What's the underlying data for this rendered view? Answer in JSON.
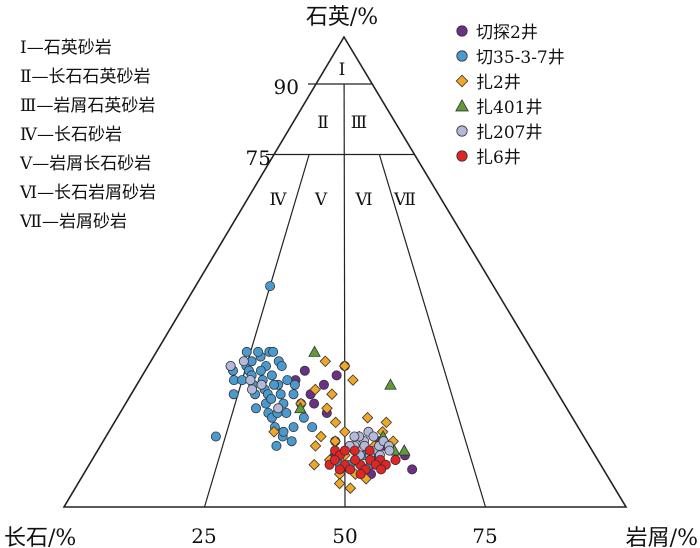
{
  "chart_data": {
    "type": "ternary-scatter",
    "apex_labels": {
      "top": "石英/%",
      "left": "长石/%",
      "right": "岩屑/%"
    },
    "quartz_ticks": [
      "90",
      "75"
    ],
    "base_ticks": [
      "25",
      "50",
      "75"
    ],
    "field_labels": [
      "Ⅰ",
      "Ⅱ",
      "Ⅲ",
      "Ⅳ",
      "Ⅴ",
      "Ⅵ",
      "Ⅶ"
    ],
    "classification": [
      "Ⅰ—石英砂岩",
      "Ⅱ—长石石英砂岩",
      "Ⅲ—岩屑石英砂岩",
      "Ⅳ—长石砂岩",
      "Ⅴ—岩屑长石砂岩",
      "Ⅵ—长石岩屑砂岩",
      "Ⅶ—岩屑砂岩"
    ],
    "series": [
      {
        "name": "切探2井",
        "marker": "circle",
        "color": "#6b2f86",
        "points": [
          [
            40,
            29
          ],
          [
            48,
            28
          ],
          [
            45,
            26
          ],
          [
            42,
            24
          ],
          [
            43,
            22
          ],
          [
            50,
            30
          ],
          [
            38,
            27
          ],
          [
            46,
            20
          ],
          [
            58,
            13
          ],
          [
            62,
            11
          ],
          [
            60,
            10
          ],
          [
            63,
            8
          ],
          [
            57,
            14
          ],
          [
            55,
            7
          ],
          [
            56,
            10
          ],
          [
            48,
            11
          ],
          [
            52,
            10
          ]
        ]
      },
      {
        "name": "切35-3-7井",
        "marker": "circle",
        "color": "#4a9ad0",
        "points": [
          [
            25,
            47
          ],
          [
            22,
            29
          ],
          [
            21,
            30
          ],
          [
            25,
            30
          ],
          [
            28,
            32
          ],
          [
            26,
            29
          ],
          [
            30,
            30
          ],
          [
            32,
            28
          ],
          [
            33,
            31
          ],
          [
            30,
            27
          ],
          [
            31,
            25
          ],
          [
            34,
            26
          ],
          [
            35,
            24
          ],
          [
            32,
            22
          ],
          [
            33,
            20
          ],
          [
            36,
            22
          ],
          [
            37,
            20
          ],
          [
            38,
            24
          ],
          [
            40,
            22
          ],
          [
            35,
            17
          ],
          [
            37,
            15
          ],
          [
            36,
            13
          ],
          [
            39,
            17
          ],
          [
            30,
            33
          ],
          [
            27,
            33
          ],
          [
            24,
            33
          ],
          [
            26,
            31
          ],
          [
            31,
            33
          ],
          [
            34,
            30
          ],
          [
            36,
            27
          ],
          [
            38,
            26
          ],
          [
            28,
            26
          ],
          [
            29,
            24
          ],
          [
            23,
            27
          ],
          [
            25,
            27
          ],
          [
            24,
            24
          ],
          [
            27,
            28
          ],
          [
            29,
            29
          ],
          [
            30,
            21
          ],
          [
            34,
            19
          ],
          [
            35,
            20
          ],
          [
            33,
            26
          ],
          [
            32,
            24
          ],
          [
            37,
            16
          ],
          [
            39,
            14
          ],
          [
            41,
            19
          ],
          [
            43,
            17
          ],
          [
            48,
            14
          ],
          [
            52,
            12
          ],
          [
            49,
            9
          ],
          [
            51,
            9
          ],
          [
            55,
            9
          ],
          [
            54,
            11
          ],
          [
            23,
            15
          ],
          [
            33,
            23
          ]
        ]
      },
      {
        "name": "扎2井",
        "marker": "diamond",
        "color": "#f0a626",
        "points": [
          [
            45,
            31
          ],
          [
            50,
            30
          ],
          [
            52,
            27
          ],
          [
            43,
            25
          ],
          [
            47,
            24
          ],
          [
            40,
            22
          ],
          [
            46,
            21
          ],
          [
            35,
            16
          ],
          [
            45,
            15
          ],
          [
            44,
            13
          ],
          [
            48,
            14
          ],
          [
            50,
            11
          ],
          [
            49,
            7
          ],
          [
            53,
            15
          ],
          [
            55,
            19
          ],
          [
            58,
            16
          ],
          [
            56,
            13
          ],
          [
            53,
            9
          ],
          [
            60,
            14
          ],
          [
            52,
            7
          ],
          [
            49,
            5
          ],
          [
            47,
            10
          ],
          [
            51,
            4
          ],
          [
            54,
            6
          ],
          [
            59,
            18
          ],
          [
            48,
            18
          ],
          [
            44,
            9
          ],
          [
            50,
            16
          ]
        ]
      },
      {
        "name": "扎401井",
        "marker": "triangle",
        "color": "#5e9c3a",
        "points": [
          [
            42,
            33
          ],
          [
            40,
            21
          ],
          [
            61,
            26
          ],
          [
            60,
            12
          ],
          [
            62,
            12
          ],
          [
            58,
            15
          ]
        ]
      },
      {
        "name": "扎207井",
        "marker": "circle",
        "color": "#b4b9da",
        "points": [
          [
            21,
            30
          ],
          [
            24,
            31
          ],
          [
            27,
            27
          ],
          [
            28,
            25
          ],
          [
            30,
            26
          ],
          [
            35,
            21
          ],
          [
            52,
            13
          ],
          [
            54,
            14
          ],
          [
            56,
            12
          ],
          [
            57,
            13
          ],
          [
            55,
            16
          ],
          [
            53,
            15
          ],
          [
            58,
            14
          ],
          [
            51,
            13
          ],
          [
            55,
            11
          ],
          [
            57,
            11
          ],
          [
            53,
            11
          ],
          [
            56,
            15
          ],
          [
            54,
            13
          ],
          [
            59,
            13
          ],
          [
            59,
            12
          ],
          [
            52,
            15
          ],
          [
            50,
            12
          ]
        ]
      },
      {
        "name": "扎6井",
        "marker": "circle",
        "color": "#e02525",
        "points": [
          [
            48,
            12
          ],
          [
            49,
            11
          ],
          [
            50,
            9
          ],
          [
            53,
            9
          ],
          [
            55,
            10
          ],
          [
            57,
            10
          ],
          [
            56,
            9
          ],
          [
            58,
            9
          ],
          [
            60,
            10
          ],
          [
            51,
            8
          ],
          [
            47,
            9
          ],
          [
            52,
            10
          ],
          [
            54,
            8
          ],
          [
            55,
            12
          ],
          [
            53,
            7
          ],
          [
            50,
            12
          ],
          [
            57,
            8
          ],
          [
            48,
            10
          ],
          [
            49,
            8
          ],
          [
            52,
            12
          ]
        ]
      }
    ]
  }
}
